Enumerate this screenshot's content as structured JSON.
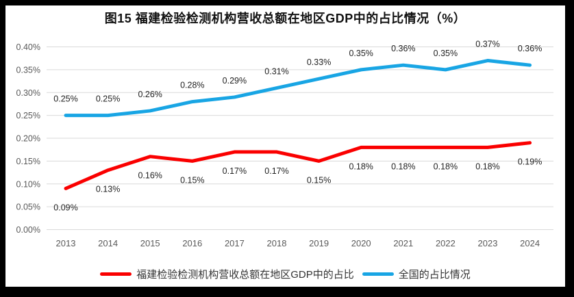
{
  "title": "图15 福建检验检测机构营收总额在地区GDP中的占比情况（%）",
  "chart_data": {
    "type": "line",
    "title": "图15 福建检验检测机构营收总额在地区GDP中的占比情况（%）",
    "categories": [
      "2013",
      "2014",
      "2015",
      "2016",
      "2017",
      "2018",
      "2019",
      "2020",
      "2021",
      "2022",
      "2023",
      "2024"
    ],
    "series": [
      {
        "name": "福建检验检测机构营收总额在地区GDP中的占比",
        "color": "#FA0000",
        "values": [
          0.09,
          0.13,
          0.16,
          0.15,
          0.17,
          0.17,
          0.15,
          0.18,
          0.18,
          0.18,
          0.18,
          0.19
        ],
        "labels": [
          "0.09%",
          "0.13%",
          "0.16%",
          "0.15%",
          "0.17%",
          "0.17%",
          "0.15%",
          "0.18%",
          "0.18%",
          "0.18%",
          "0.18%",
          "0.19%"
        ],
        "label_position": "below"
      },
      {
        "name": "全国的占比情况",
        "color": "#18A5E4",
        "values": [
          0.25,
          0.25,
          0.26,
          0.28,
          0.29,
          0.31,
          0.33,
          0.35,
          0.36,
          0.35,
          0.37,
          0.36
        ],
        "labels": [
          "0.25%",
          "0.25%",
          "0.26%",
          "0.28%",
          "0.29%",
          "0.31%",
          "0.33%",
          "0.35%",
          "0.36%",
          "0.35%",
          "0.37%",
          "0.36%"
        ],
        "label_position": "above"
      }
    ],
    "xlabel": "",
    "ylabel": "",
    "y_axis": {
      "min": 0.0,
      "max": 0.4,
      "step": 0.05,
      "tick_labels": [
        "0.00%",
        "0.05%",
        "0.10%",
        "0.15%",
        "0.20%",
        "0.25%",
        "0.30%",
        "0.35%",
        "0.40%"
      ]
    },
    "grid": true,
    "legend_position": "bottom"
  },
  "legend": {
    "items": [
      {
        "label": "福建检验检测机构营收总额在地区GDP中的占比",
        "color": "#FA0000"
      },
      {
        "label": "全国的占比情况",
        "color": "#18A5E4"
      }
    ]
  },
  "colors": {
    "background": "#000000",
    "card": "#ffffff",
    "grid": "#D9D9D9",
    "axis_text": "#595959",
    "data_label": "#1F1F1F",
    "title_text": "#111111"
  }
}
